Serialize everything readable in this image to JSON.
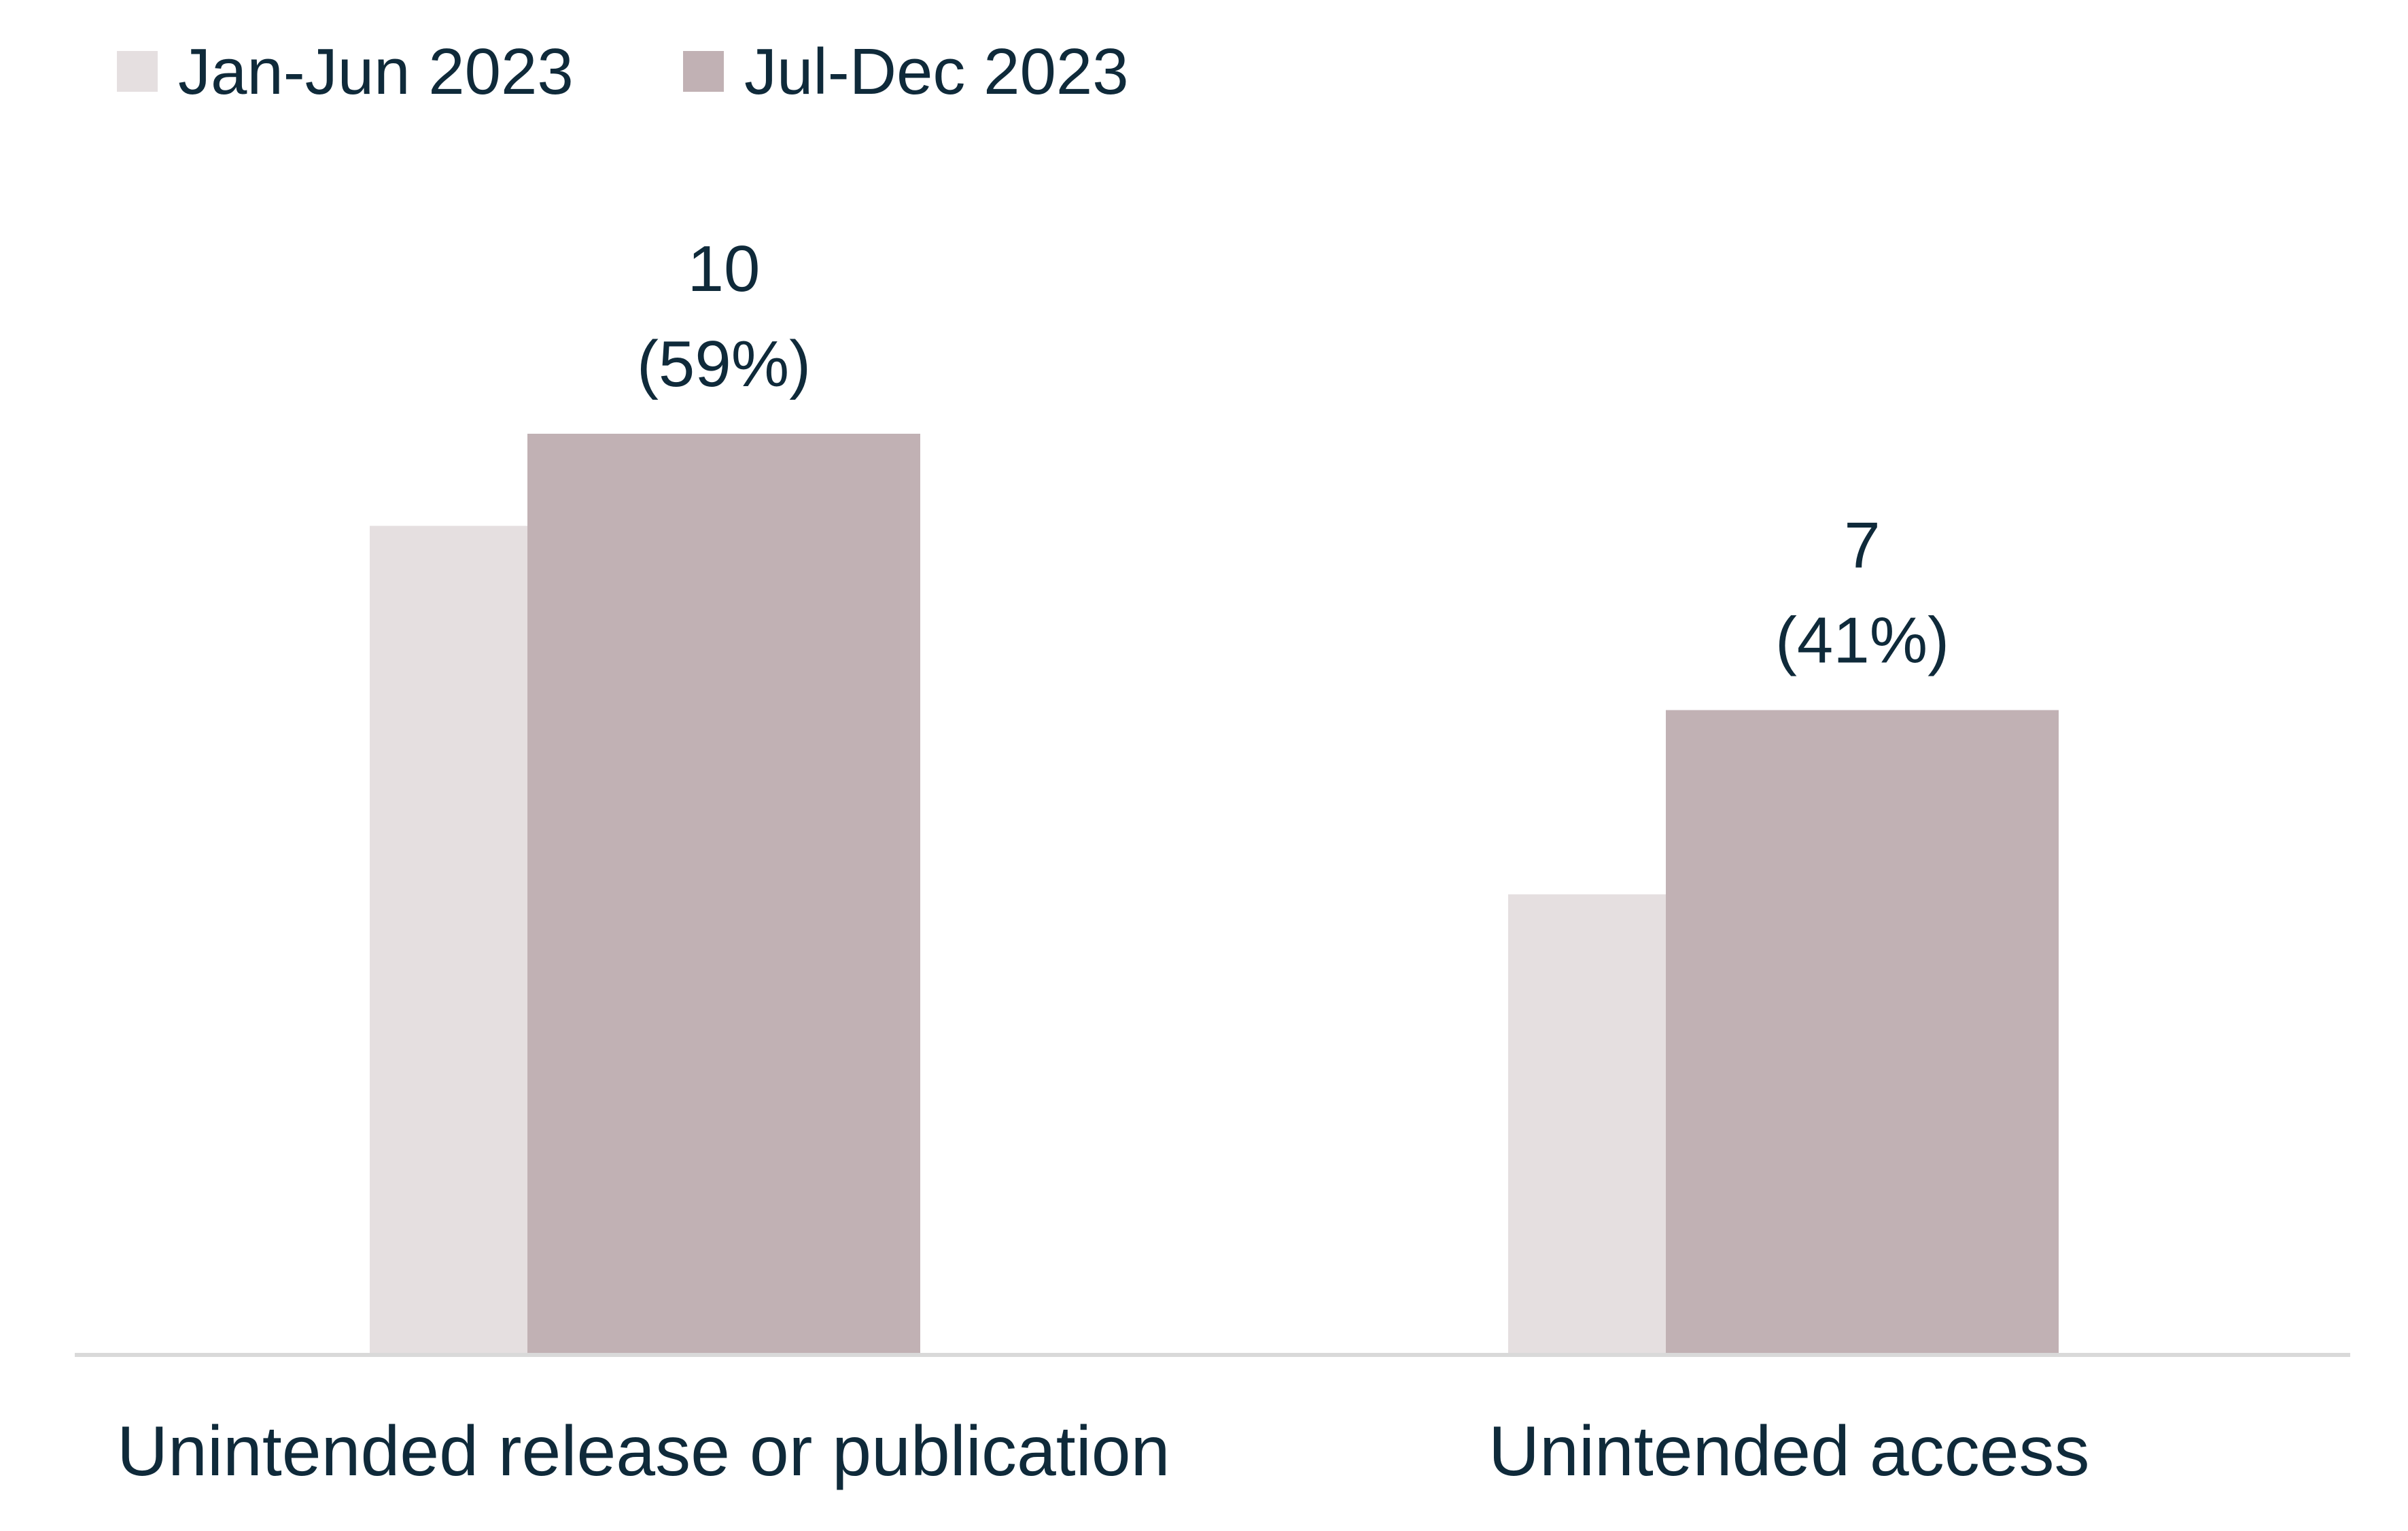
{
  "chart_data": {
    "type": "bar",
    "categories": [
      "Unintended release or publication",
      "Unintended access"
    ],
    "series": [
      {
        "name": "Jan-Jun 2023",
        "color": "#e5dfe0",
        "values": [
          9,
          5
        ],
        "data_labels": [
          "",
          ""
        ]
      },
      {
        "name": "Jul-Dec 2023",
        "color": "#c1b1b4",
        "values": [
          10,
          7
        ],
        "data_labels": [
          "10\n(59%)",
          "7\n(41%)"
        ]
      }
    ],
    "ylim": [
      0,
      10.3
    ],
    "grid": false,
    "legend_position": "top-left",
    "baseline_color": "#d9d9d9",
    "text_color": "#0f2a3a"
  }
}
